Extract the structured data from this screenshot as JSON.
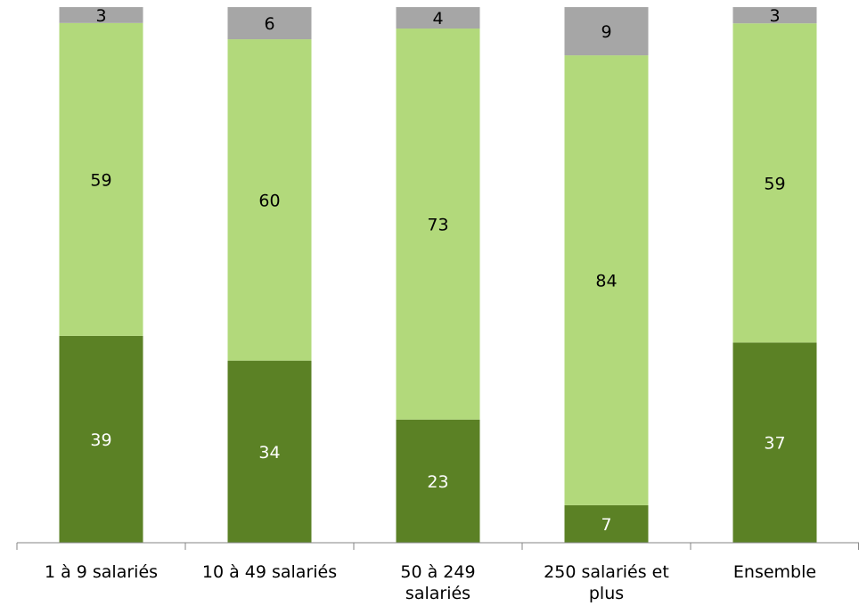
{
  "chart_data": {
    "type": "bar",
    "stacked": true,
    "percent_stacked": true,
    "categories": [
      [
        "1 à 9 salariés"
      ],
      [
        "10 à 49 salariés"
      ],
      [
        "50 à 249",
        "salariés"
      ],
      [
        "250 salariés et",
        "plus"
      ],
      [
        "Ensemble"
      ]
    ],
    "series": [
      {
        "values": [
          39,
          34,
          23,
          7,
          37
        ],
        "color": "#5b8125",
        "label_color": "#ffffff"
      },
      {
        "values": [
          59,
          60,
          73,
          84,
          59
        ],
        "color": "#b2d97b",
        "label_color": "#000000"
      },
      {
        "values": [
          3,
          6,
          4,
          9,
          3
        ],
        "color": "#a6a6a6",
        "label_color": "#000000"
      }
    ],
    "ylim": [
      0,
      100
    ],
    "grid": false,
    "legend": "none",
    "title": "",
    "xlabel": "",
    "ylabel": ""
  }
}
